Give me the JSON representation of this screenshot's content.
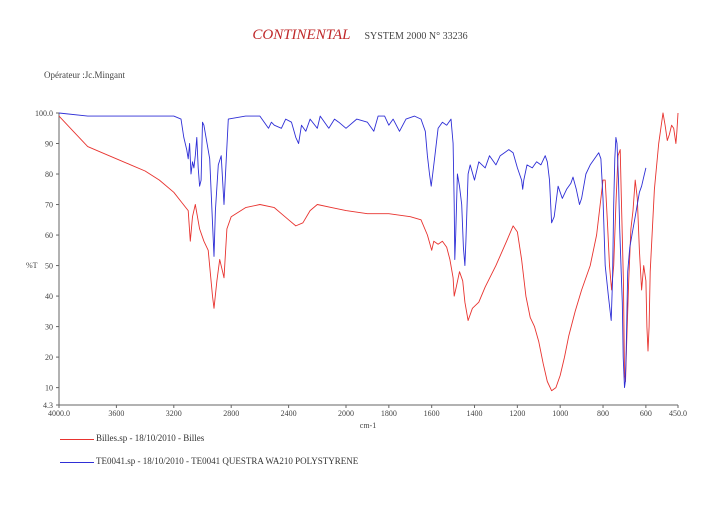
{
  "header": {
    "brand": "CONTINENTAL",
    "system": "SYSTEM 2000 N° 33236",
    "operator": "Opérateur :Jc.Mingant"
  },
  "chart_data": {
    "type": "line",
    "xlabel": "cm-1",
    "ylabel": "%T",
    "xlim": [
      4000.0,
      450.0
    ],
    "ylim": [
      4.3,
      100.0
    ],
    "x_ticks": [
      "4000.0",
      "3600",
      "3200",
      "2800",
      "2400",
      "2000",
      "1800",
      "1600",
      "1400",
      "1200",
      "1000",
      "800",
      "600",
      "450.0"
    ],
    "y_ticks": [
      "100.0",
      "90",
      "80",
      "70",
      "60",
      "50",
      "40",
      "30",
      "20",
      "10",
      "4.3"
    ],
    "colors": {
      "red": "#e8332f",
      "blue": "#2f2fd6"
    },
    "series": [
      {
        "name": "Billes.sp - 18/10/2010 - Billes",
        "color": "red",
        "points": [
          [
            4000,
            99
          ],
          [
            3900,
            94
          ],
          [
            3800,
            89
          ],
          [
            3700,
            87
          ],
          [
            3600,
            85
          ],
          [
            3500,
            83
          ],
          [
            3400,
            81
          ],
          [
            3300,
            78
          ],
          [
            3200,
            74
          ],
          [
            3150,
            71
          ],
          [
            3100,
            68
          ],
          [
            3085,
            58
          ],
          [
            3070,
            66
          ],
          [
            3050,
            70
          ],
          [
            3020,
            62
          ],
          [
            2990,
            58
          ],
          [
            2960,
            55
          ],
          [
            2930,
            40
          ],
          [
            2920,
            36
          ],
          [
            2900,
            45
          ],
          [
            2880,
            52
          ],
          [
            2860,
            48
          ],
          [
            2850,
            46
          ],
          [
            2830,
            62
          ],
          [
            2800,
            66
          ],
          [
            2700,
            69
          ],
          [
            2600,
            70
          ],
          [
            2500,
            69
          ],
          [
            2450,
            67
          ],
          [
            2400,
            65
          ],
          [
            2350,
            63
          ],
          [
            2300,
            64
          ],
          [
            2250,
            68
          ],
          [
            2200,
            70
          ],
          [
            2100,
            69
          ],
          [
            2000,
            68
          ],
          [
            1900,
            67
          ],
          [
            1800,
            67
          ],
          [
            1700,
            66
          ],
          [
            1650,
            65
          ],
          [
            1620,
            60
          ],
          [
            1600,
            55
          ],
          [
            1590,
            58
          ],
          [
            1570,
            57
          ],
          [
            1550,
            58
          ],
          [
            1530,
            56
          ],
          [
            1515,
            52
          ],
          [
            1500,
            46
          ],
          [
            1495,
            40
          ],
          [
            1485,
            43
          ],
          [
            1470,
            48
          ],
          [
            1455,
            45
          ],
          [
            1445,
            38
          ],
          [
            1430,
            32
          ],
          [
            1410,
            36
          ],
          [
            1380,
            38
          ],
          [
            1350,
            43
          ],
          [
            1300,
            50
          ],
          [
            1250,
            58
          ],
          [
            1220,
            63
          ],
          [
            1200,
            61
          ],
          [
            1180,
            52
          ],
          [
            1160,
            40
          ],
          [
            1140,
            33
          ],
          [
            1120,
            30
          ],
          [
            1100,
            25
          ],
          [
            1080,
            18
          ],
          [
            1060,
            12
          ],
          [
            1040,
            9
          ],
          [
            1020,
            10
          ],
          [
            1000,
            14
          ],
          [
            980,
            20
          ],
          [
            960,
            27
          ],
          [
            930,
            35
          ],
          [
            900,
            42
          ],
          [
            860,
            50
          ],
          [
            830,
            60
          ],
          [
            810,
            72
          ],
          [
            800,
            78
          ],
          [
            790,
            78
          ],
          [
            780,
            65
          ],
          [
            770,
            50
          ],
          [
            760,
            42
          ],
          [
            750,
            50
          ],
          [
            740,
            70
          ],
          [
            730,
            86
          ],
          [
            720,
            88
          ],
          [
            715,
            74
          ],
          [
            705,
            45
          ],
          [
            700,
            15
          ],
          [
            695,
            12
          ],
          [
            690,
            24
          ],
          [
            680,
            45
          ],
          [
            670,
            62
          ],
          [
            660,
            68
          ],
          [
            650,
            78
          ],
          [
            640,
            72
          ],
          [
            630,
            55
          ],
          [
            620,
            42
          ],
          [
            610,
            50
          ],
          [
            600,
            45
          ],
          [
            595,
            30
          ],
          [
            590,
            22
          ],
          [
            585,
            30
          ],
          [
            580,
            48
          ],
          [
            560,
            75
          ],
          [
            540,
            90
          ],
          [
            520,
            100
          ],
          [
            510,
            96
          ],
          [
            500,
            91
          ],
          [
            490,
            93
          ],
          [
            480,
            96
          ],
          [
            470,
            95
          ],
          [
            460,
            90
          ],
          [
            455,
            94
          ],
          [
            450,
            100
          ]
        ]
      },
      {
        "name": "TE0041.sp - 18/10/2010 - TE0041 QUESTRA WA210 POLYSTYRENE",
        "color": "blue",
        "points": [
          [
            4000,
            100
          ],
          [
            3800,
            99
          ],
          [
            3600,
            99
          ],
          [
            3400,
            99
          ],
          [
            3200,
            99
          ],
          [
            3150,
            98
          ],
          [
            3130,
            92
          ],
          [
            3110,
            88
          ],
          [
            3100,
            85
          ],
          [
            3090,
            90
          ],
          [
            3080,
            80
          ],
          [
            3070,
            84
          ],
          [
            3060,
            82
          ],
          [
            3050,
            86
          ],
          [
            3040,
            92
          ],
          [
            3030,
            82
          ],
          [
            3020,
            76
          ],
          [
            3010,
            78
          ],
          [
            3000,
            97
          ],
          [
            2990,
            96
          ],
          [
            2950,
            85
          ],
          [
            2930,
            64
          ],
          [
            2920,
            53
          ],
          [
            2910,
            68
          ],
          [
            2890,
            83
          ],
          [
            2870,
            86
          ],
          [
            2850,
            70
          ],
          [
            2840,
            80
          ],
          [
            2820,
            98
          ],
          [
            2700,
            99
          ],
          [
            2600,
            99
          ],
          [
            2540,
            95
          ],
          [
            2520,
            97
          ],
          [
            2500,
            96
          ],
          [
            2450,
            95
          ],
          [
            2420,
            98
          ],
          [
            2380,
            97
          ],
          [
            2350,
            92
          ],
          [
            2330,
            90
          ],
          [
            2310,
            96
          ],
          [
            2280,
            94
          ],
          [
            2250,
            98
          ],
          [
            2200,
            95
          ],
          [
            2180,
            99
          ],
          [
            2120,
            95
          ],
          [
            2080,
            98
          ],
          [
            2050,
            97
          ],
          [
            2000,
            95
          ],
          [
            1950,
            98
          ],
          [
            1900,
            97
          ],
          [
            1870,
            94
          ],
          [
            1850,
            99
          ],
          [
            1820,
            99
          ],
          [
            1800,
            96
          ],
          [
            1780,
            98
          ],
          [
            1750,
            94
          ],
          [
            1720,
            98
          ],
          [
            1680,
            99
          ],
          [
            1650,
            98
          ],
          [
            1630,
            94
          ],
          [
            1620,
            86
          ],
          [
            1610,
            80
          ],
          [
            1602,
            76
          ],
          [
            1595,
            80
          ],
          [
            1585,
            86
          ],
          [
            1570,
            95
          ],
          [
            1550,
            97
          ],
          [
            1530,
            96
          ],
          [
            1510,
            98
          ],
          [
            1500,
            90
          ],
          [
            1495,
            70
          ],
          [
            1492,
            52
          ],
          [
            1488,
            60
          ],
          [
            1480,
            80
          ],
          [
            1470,
            76
          ],
          [
            1460,
            70
          ],
          [
            1452,
            56
          ],
          [
            1445,
            50
          ],
          [
            1440,
            58
          ],
          [
            1430,
            80
          ],
          [
            1420,
            83
          ],
          [
            1400,
            78
          ],
          [
            1380,
            84
          ],
          [
            1350,
            82
          ],
          [
            1330,
            86
          ],
          [
            1300,
            83
          ],
          [
            1280,
            86
          ],
          [
            1260,
            87
          ],
          [
            1240,
            88
          ],
          [
            1220,
            87
          ],
          [
            1200,
            82
          ],
          [
            1180,
            78
          ],
          [
            1175,
            75
          ],
          [
            1170,
            78
          ],
          [
            1155,
            83
          ],
          [
            1130,
            82
          ],
          [
            1110,
            84
          ],
          [
            1090,
            83
          ],
          [
            1070,
            86
          ],
          [
            1060,
            84
          ],
          [
            1050,
            78
          ],
          [
            1040,
            64
          ],
          [
            1028,
            66
          ],
          [
            1010,
            76
          ],
          [
            990,
            72
          ],
          [
            970,
            75
          ],
          [
            950,
            77
          ],
          [
            940,
            79
          ],
          [
            925,
            75
          ],
          [
            910,
            70
          ],
          [
            900,
            72
          ],
          [
            880,
            80
          ],
          [
            860,
            83
          ],
          [
            840,
            85
          ],
          [
            820,
            87
          ],
          [
            810,
            85
          ],
          [
            800,
            72
          ],
          [
            790,
            50
          ],
          [
            775,
            40
          ],
          [
            762,
            32
          ],
          [
            756,
            45
          ],
          [
            750,
            70
          ],
          [
            745,
            85
          ],
          [
            740,
            92
          ],
          [
            735,
            90
          ],
          [
            728,
            78
          ],
          [
            722,
            62
          ],
          [
            715,
            48
          ],
          [
            710,
            38
          ],
          [
            706,
            20
          ],
          [
            700,
            10
          ],
          [
            696,
            12
          ],
          [
            692,
            22
          ],
          [
            685,
            48
          ],
          [
            675,
            56
          ],
          [
            660,
            62
          ],
          [
            650,
            66
          ],
          [
            640,
            70
          ],
          [
            630,
            74
          ],
          [
            620,
            76
          ],
          [
            610,
            79
          ],
          [
            600,
            82
          ]
        ]
      }
    ]
  },
  "legend": [
    {
      "label": "Billes.sp - 18/10/2010 - Billes",
      "color": "#e8332f"
    },
    {
      "label": "TE0041.sp - 18/10/2010 - TE0041 QUESTRA WA210 POLYSTYRENE",
      "color": "#2f2fd6"
    }
  ]
}
